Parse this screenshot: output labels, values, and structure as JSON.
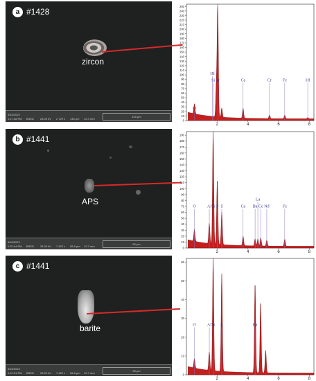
{
  "panels": [
    {
      "letter": "a",
      "sample_id": "#1428",
      "mineral": "zircon",
      "info": {
        "date": "3/15/2022",
        "time": "1:17:48 PM",
        "det": "BSED",
        "hv": "25.00 kV",
        "mag": "2 729 x",
        "hfw": "149 μm",
        "wd": "12.9 mm",
        "scale": "100 μm",
        "lab": "SRC Advanced Microanalysis"
      },
      "spectrum": {
        "y_ticks": [
          "0",
          "10",
          "20",
          "30",
          "40",
          "50",
          "60",
          "70",
          "80",
          "90",
          "100",
          "110",
          "120",
          "130",
          "140",
          "150",
          "160",
          "170",
          "180",
          "190",
          "200",
          "210",
          "220",
          "230",
          "240",
          "250"
        ],
        "x_ticks": [
          "2",
          "4",
          "6",
          "8"
        ],
        "ymax": 255,
        "xmax": 8.3,
        "peaks": [
          [
            0.52,
            22
          ],
          [
            1.95,
            70
          ],
          [
            2.04,
            250
          ],
          [
            2.3,
            20
          ],
          [
            3.69,
            22
          ],
          [
            5.41,
            8
          ],
          [
            6.4,
            8
          ],
          [
            7.9,
            3
          ]
        ],
        "labels": [
          {
            "text": "O",
            "x": 0.52,
            "y": 24
          },
          {
            "text": "Hf",
            "x": 1.7,
            "y": 100
          },
          {
            "text": "Si",
            "x": 1.74,
            "y": 86
          },
          {
            "text": "Zr",
            "x": 2.04,
            "y": 86
          },
          {
            "text": "Ca",
            "x": 3.69,
            "y": 86
          },
          {
            "text": "Cr",
            "x": 5.41,
            "y": 86
          },
          {
            "text": "Fe",
            "x": 6.4,
            "y": 86
          },
          {
            "text": "Hf",
            "x": 7.9,
            "y": 86
          }
        ]
      }
    },
    {
      "letter": "b",
      "sample_id": "#1441",
      "mineral": "APS",
      "info": {
        "date": "3/15/2022",
        "time": "1:37:44 PM",
        "det": "BSED",
        "hv": "25.00 kV",
        "mag": "7 422 x",
        "hfw": "55.8 μm",
        "wd": "12.7 mm",
        "scale": "50 μm",
        "lab": "SRC Advanced Microanalysis"
      },
      "spectrum": {
        "y_ticks": [
          "0",
          "10",
          "20",
          "30",
          "40",
          "50",
          "60",
          "70",
          "80",
          "90",
          "100",
          "110",
          "120",
          "130",
          "140",
          "150",
          "160",
          "170",
          "180",
          "190"
        ],
        "x_ticks": [
          "2",
          "4",
          "6",
          "8"
        ],
        "ymax": 196,
        "xmax": 8.3,
        "peaks": [
          [
            0.52,
            20
          ],
          [
            1.49,
            35
          ],
          [
            1.74,
            190
          ],
          [
            2.01,
            110
          ],
          [
            2.3,
            55
          ],
          [
            3.69,
            16
          ],
          [
            4.47,
            12
          ],
          [
            4.65,
            12
          ],
          [
            4.84,
            14
          ],
          [
            5.23,
            10
          ],
          [
            6.4,
            12
          ]
        ],
        "labels": [
          {
            "text": "O",
            "x": 0.52,
            "y": 68
          },
          {
            "text": "Al",
            "x": 1.49,
            "y": 68
          },
          {
            "text": "Si",
            "x": 1.74,
            "y": 68
          },
          {
            "text": "P",
            "x": 2.01,
            "y": 68
          },
          {
            "text": "S",
            "x": 2.3,
            "y": 68
          },
          {
            "text": "Ca",
            "x": 3.69,
            "y": 68
          },
          {
            "text": "La",
            "x": 4.65,
            "y": 80
          },
          {
            "text": "Ba",
            "x": 4.47,
            "y": 68
          },
          {
            "text": "Ce",
            "x": 4.84,
            "y": 68
          },
          {
            "text": "Nd",
            "x": 5.23,
            "y": 68
          },
          {
            "text": "Fe",
            "x": 6.4,
            "y": 68
          }
        ]
      }
    },
    {
      "letter": "c",
      "sample_id": "#1441",
      "mineral": "barite",
      "info": {
        "date": "3/15/2022",
        "time": "1:47:21 PM",
        "det": "BSED",
        "hv": "25.00 kV",
        "mag": "7 422 x",
        "hfw": "55.8 μm",
        "wd": "12.7 mm",
        "scale": "20 μm",
        "lab": "SRC Advanced Microanalysis"
      },
      "spectrum": {
        "y_ticks": [
          "0",
          "10",
          "20",
          "30",
          "40",
          "50",
          "60"
        ],
        "x_ticks": [
          "2",
          "4",
          "6",
          "8"
        ],
        "ymax": 62,
        "xmax": 8.3,
        "peaks": [
          [
            0.52,
            5
          ],
          [
            1.49,
            10
          ],
          [
            1.74,
            60
          ],
          [
            2.3,
            52
          ],
          [
            4.47,
            48
          ],
          [
            4.83,
            38
          ],
          [
            5.16,
            12
          ]
        ],
        "labels": [
          {
            "text": "O",
            "x": 0.52,
            "y": 26
          },
          {
            "text": "Al",
            "x": 1.49,
            "y": 26
          },
          {
            "text": "Si",
            "x": 1.74,
            "y": 26
          },
          {
            "text": "S",
            "x": 2.3,
            "y": 26
          },
          {
            "text": "Ba",
            "x": 4.47,
            "y": 26
          }
        ]
      }
    }
  ],
  "colors": {
    "spectrum_fill": "#c41f1f",
    "spectrum_line": "#7a0d0d",
    "connector": "#d62a2a",
    "label": "#3a3a8a",
    "marker": "#8a74b8"
  }
}
